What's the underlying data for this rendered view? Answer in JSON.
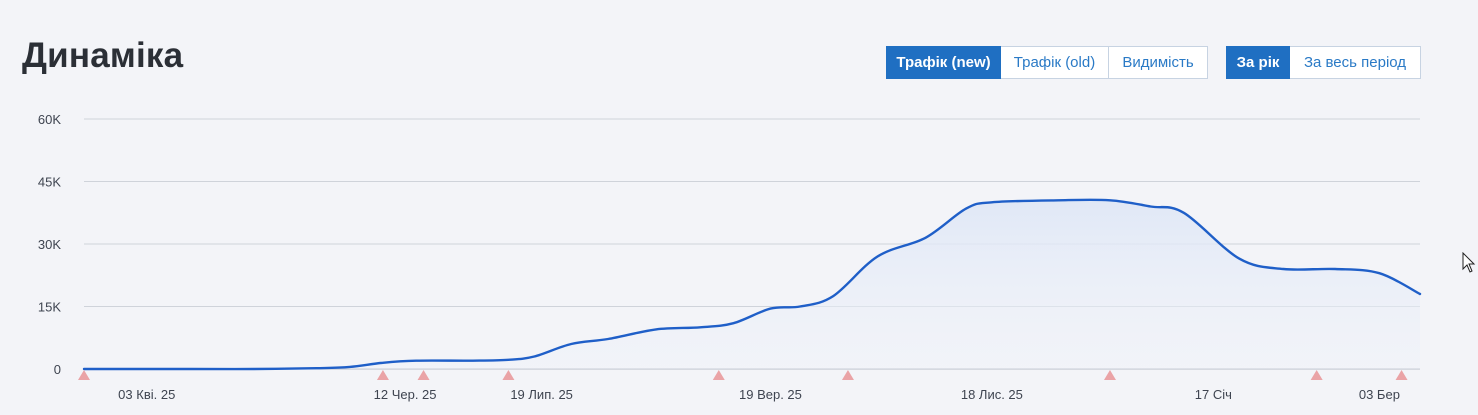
{
  "header": {
    "title": "Динаміка",
    "metric_tabs": [
      {
        "label": "Трафік (new)",
        "active": true
      },
      {
        "label": "Трафік (old)",
        "active": false
      },
      {
        "label": "Видимість",
        "active": false
      }
    ],
    "period_tabs": [
      {
        "label": "За рік",
        "active": true
      },
      {
        "label": "За весь період",
        "active": false
      }
    ]
  },
  "colors": {
    "line": "#1f5fc8",
    "area": "#e6ecf8",
    "grid": "#cfd3da",
    "marker": "#eaa3a6",
    "active_button": "#1f6fc2"
  },
  "chart_data": {
    "type": "area",
    "title": "Динаміка",
    "xlabel": "",
    "ylabel": "",
    "x_range": [
      "2025-03-17",
      "2026-03-14"
    ],
    "ylim": [
      0,
      60000
    ],
    "y_ticks": [
      {
        "value": 0,
        "label": "0"
      },
      {
        "value": 15000,
        "label": "15K"
      },
      {
        "value": 30000,
        "label": "30K"
      },
      {
        "value": 45000,
        "label": "45K"
      },
      {
        "value": 60000,
        "label": "60K"
      }
    ],
    "x_ticks": [
      {
        "date": "2025-04-03",
        "label": "03 Кві. 25"
      },
      {
        "date": "2025-06-12",
        "label": "12 Чер. 25"
      },
      {
        "date": "2025-07-19",
        "label": "19 Лип. 25"
      },
      {
        "date": "2025-09-19",
        "label": "19 Вер. 25"
      },
      {
        "date": "2025-11-18",
        "label": "18 Лис. 25"
      },
      {
        "date": "2026-01-17",
        "label": "17 Січ"
      },
      {
        "date": "2026-03-03",
        "label": "03 Бер"
      }
    ],
    "grid": true,
    "legend": "none",
    "series": [
      {
        "points": [
          {
            "x": "2025-03-17",
            "y": 0
          },
          {
            "x": "2025-04-15",
            "y": 0
          },
          {
            "x": "2025-05-02",
            "y": 0
          },
          {
            "x": "2025-05-19",
            "y": 200
          },
          {
            "x": "2025-05-28",
            "y": 500
          },
          {
            "x": "2025-06-06",
            "y": 1500
          },
          {
            "x": "2025-06-15",
            "y": 2000
          },
          {
            "x": "2025-06-30",
            "y": 2000
          },
          {
            "x": "2025-07-10",
            "y": 2200
          },
          {
            "x": "2025-07-17",
            "y": 3000
          },
          {
            "x": "2025-07-27",
            "y": 6000
          },
          {
            "x": "2025-08-06",
            "y": 7200
          },
          {
            "x": "2025-08-19",
            "y": 9500
          },
          {
            "x": "2025-08-31",
            "y": 10000
          },
          {
            "x": "2025-09-09",
            "y": 11000
          },
          {
            "x": "2025-09-19",
            "y": 14500
          },
          {
            "x": "2025-09-27",
            "y": 15000
          },
          {
            "x": "2025-10-06",
            "y": 17500
          },
          {
            "x": "2025-10-18",
            "y": 27000
          },
          {
            "x": "2025-10-31",
            "y": 31500
          },
          {
            "x": "2025-11-11",
            "y": 38500
          },
          {
            "x": "2025-11-18",
            "y": 40000
          },
          {
            "x": "2025-12-06",
            "y": 40500
          },
          {
            "x": "2025-12-20",
            "y": 40500
          },
          {
            "x": "2025-12-31",
            "y": 39000
          },
          {
            "x": "2026-01-09",
            "y": 37500
          },
          {
            "x": "2026-01-24",
            "y": 26500
          },
          {
            "x": "2026-02-05",
            "y": 24000
          },
          {
            "x": "2026-02-19",
            "y": 24000
          },
          {
            "x": "2026-03-03",
            "y": 23000
          },
          {
            "x": "2026-03-14",
            "y": 18000
          }
        ]
      }
    ],
    "annotations": [
      {
        "date": "2025-03-17",
        "type": "triangle"
      },
      {
        "date": "2025-06-06",
        "type": "triangle"
      },
      {
        "date": "2025-06-17",
        "type": "triangle"
      },
      {
        "date": "2025-07-10",
        "type": "triangle"
      },
      {
        "date": "2025-09-05",
        "type": "triangle"
      },
      {
        "date": "2025-10-10",
        "type": "triangle"
      },
      {
        "date": "2025-12-20",
        "type": "triangle"
      },
      {
        "date": "2026-02-14",
        "type": "triangle"
      },
      {
        "date": "2026-03-09",
        "type": "triangle"
      }
    ]
  }
}
